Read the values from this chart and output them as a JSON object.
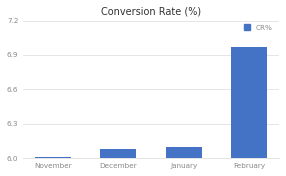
{
  "title": "Conversion Rate (%)",
  "categories": [
    "November",
    "December",
    "January",
    "February"
  ],
  "values": [
    6.01,
    6.08,
    6.1,
    6.97
  ],
  "bar_color": "#4472c4",
  "ylim": [
    6.0,
    7.2
  ],
  "yticks": [
    6.0,
    6.3,
    6.6,
    6.9,
    7.2
  ],
  "legend_label": "CR%",
  "background_color": "#ffffff",
  "plot_bg_color": "#ffffff",
  "title_fontsize": 7.0,
  "tick_fontsize": 5.2,
  "legend_fontsize": 5.2,
  "grid_color": "#e0e0e0",
  "tick_color": "#888888",
  "title_color": "#333333"
}
